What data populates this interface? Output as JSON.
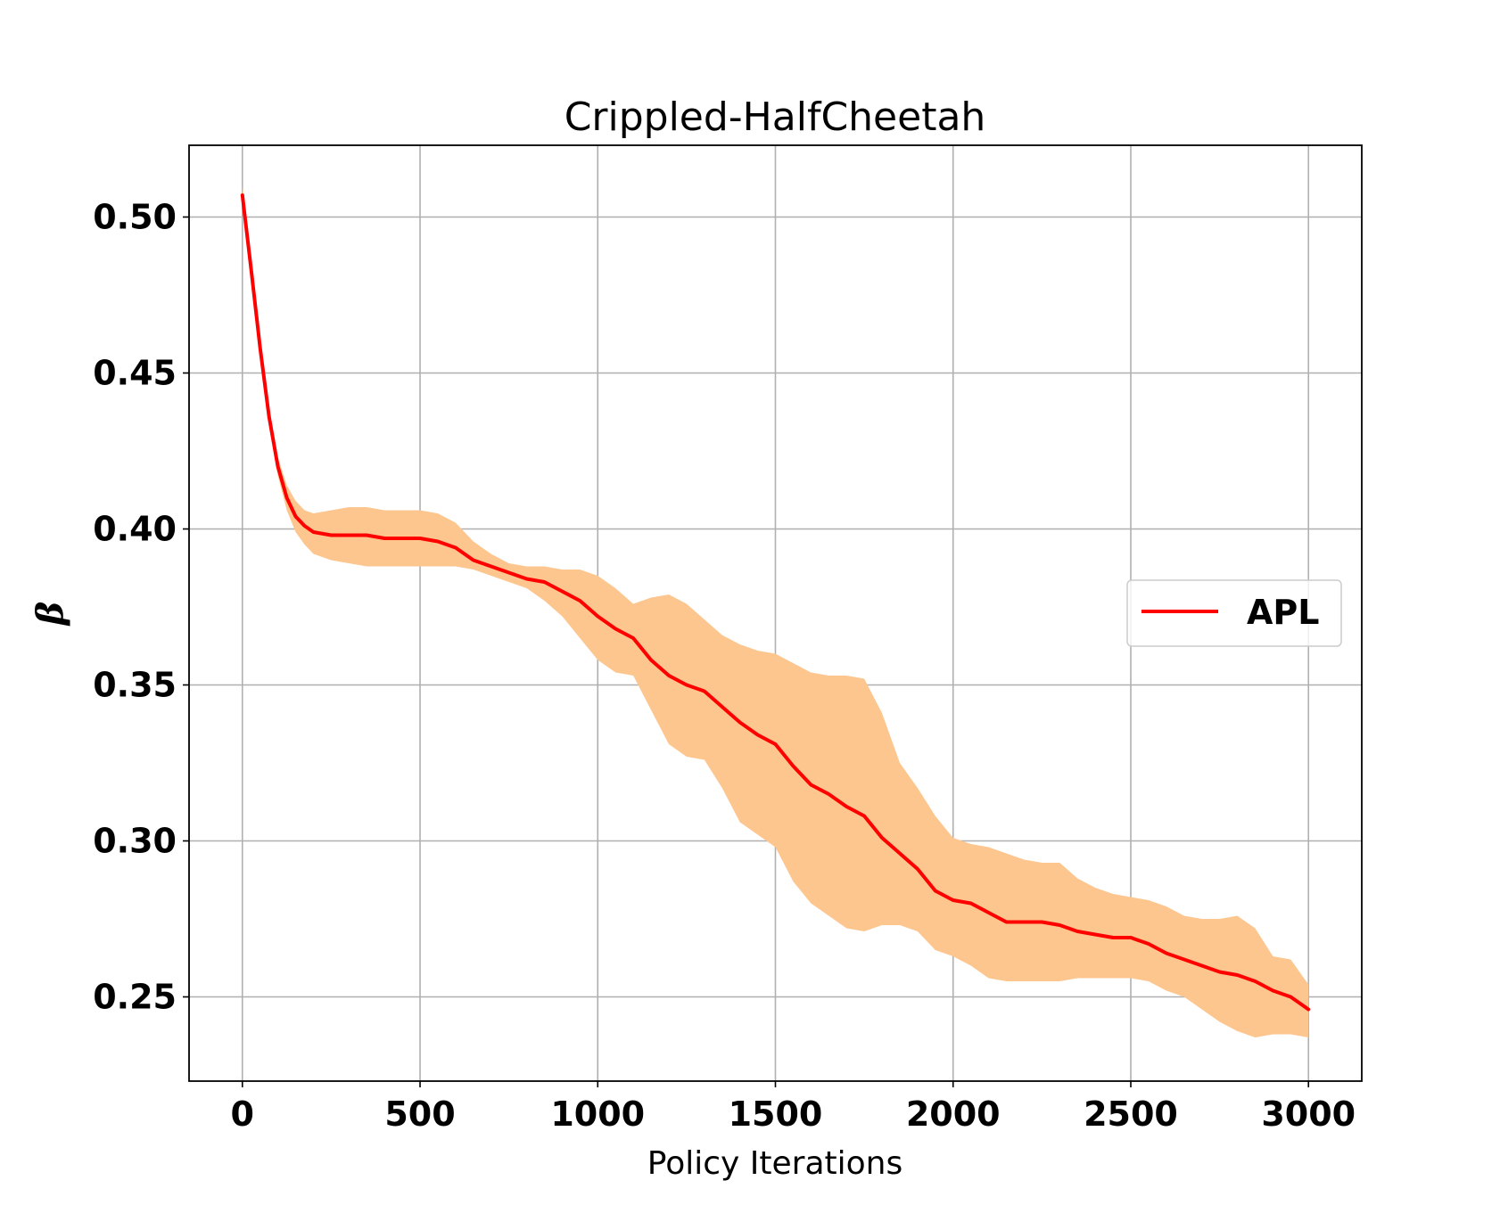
{
  "chart_data": {
    "type": "line",
    "title": "Crippled-HalfCheetah",
    "xlabel": "Policy Iterations",
    "ylabel": "β",
    "xlim": [
      -150,
      3150
    ],
    "ylim": [
      0.223,
      0.523
    ],
    "xticks": [
      0,
      500,
      1000,
      1500,
      2000,
      2500,
      3000
    ],
    "xtick_labels": [
      "0",
      "500",
      "1000",
      "1500",
      "2000",
      "2500",
      "3000"
    ],
    "yticks": [
      0.25,
      0.3,
      0.35,
      0.4,
      0.45,
      0.5
    ],
    "ytick_labels": [
      "0.25",
      "0.30",
      "0.35",
      "0.40",
      "0.45",
      "0.50"
    ],
    "grid": true,
    "legend": {
      "position": "center-right",
      "entries": [
        "APL"
      ]
    },
    "series": [
      {
        "name": "APL",
        "color": "#ff0000",
        "band_color": "#fdc68f",
        "x": [
          0,
          25,
          50,
          75,
          100,
          125,
          150,
          175,
          200,
          250,
          300,
          350,
          400,
          450,
          500,
          550,
          600,
          650,
          700,
          750,
          800,
          850,
          900,
          950,
          1000,
          1050,
          1100,
          1150,
          1200,
          1250,
          1300,
          1350,
          1400,
          1450,
          1500,
          1550,
          1600,
          1650,
          1700,
          1750,
          1800,
          1850,
          1900,
          1950,
          2000,
          2050,
          2100,
          2150,
          2200,
          2250,
          2300,
          2350,
          2400,
          2450,
          2500,
          2550,
          2600,
          2650,
          2700,
          2750,
          2800,
          2850,
          2900,
          2950,
          3000
        ],
        "mean": [
          0.507,
          0.483,
          0.458,
          0.436,
          0.42,
          0.41,
          0.404,
          0.401,
          0.399,
          0.398,
          0.398,
          0.398,
          0.397,
          0.397,
          0.397,
          0.396,
          0.394,
          0.39,
          0.388,
          0.386,
          0.384,
          0.383,
          0.38,
          0.377,
          0.372,
          0.368,
          0.365,
          0.358,
          0.353,
          0.35,
          0.348,
          0.343,
          0.338,
          0.334,
          0.331,
          0.324,
          0.318,
          0.315,
          0.311,
          0.308,
          0.301,
          0.296,
          0.291,
          0.284,
          0.281,
          0.28,
          0.277,
          0.274,
          0.274,
          0.274,
          0.273,
          0.271,
          0.27,
          0.269,
          0.269,
          0.267,
          0.264,
          0.262,
          0.26,
          0.258,
          0.257,
          0.255,
          0.252,
          0.25,
          0.246
        ],
        "upper": [
          0.51,
          0.486,
          0.461,
          0.439,
          0.423,
          0.414,
          0.409,
          0.406,
          0.405,
          0.406,
          0.407,
          0.407,
          0.406,
          0.406,
          0.406,
          0.405,
          0.402,
          0.396,
          0.392,
          0.389,
          0.388,
          0.388,
          0.387,
          0.387,
          0.385,
          0.381,
          0.376,
          0.378,
          0.379,
          0.376,
          0.371,
          0.366,
          0.363,
          0.361,
          0.36,
          0.357,
          0.354,
          0.353,
          0.353,
          0.352,
          0.341,
          0.325,
          0.317,
          0.308,
          0.301,
          0.299,
          0.298,
          0.296,
          0.294,
          0.293,
          0.293,
          0.288,
          0.285,
          0.283,
          0.282,
          0.281,
          0.279,
          0.276,
          0.275,
          0.275,
          0.276,
          0.272,
          0.263,
          0.262,
          0.254
        ],
        "lower": [
          0.504,
          0.48,
          0.455,
          0.433,
          0.417,
          0.406,
          0.399,
          0.395,
          0.392,
          0.39,
          0.389,
          0.388,
          0.388,
          0.388,
          0.388,
          0.388,
          0.388,
          0.387,
          0.385,
          0.383,
          0.381,
          0.377,
          0.372,
          0.365,
          0.358,
          0.354,
          0.353,
          0.342,
          0.331,
          0.327,
          0.326,
          0.317,
          0.306,
          0.302,
          0.298,
          0.287,
          0.28,
          0.276,
          0.272,
          0.271,
          0.273,
          0.273,
          0.271,
          0.265,
          0.263,
          0.26,
          0.256,
          0.255,
          0.255,
          0.255,
          0.255,
          0.256,
          0.256,
          0.256,
          0.256,
          0.255,
          0.252,
          0.25,
          0.246,
          0.242,
          0.239,
          0.237,
          0.238,
          0.238,
          0.237
        ]
      }
    ]
  }
}
